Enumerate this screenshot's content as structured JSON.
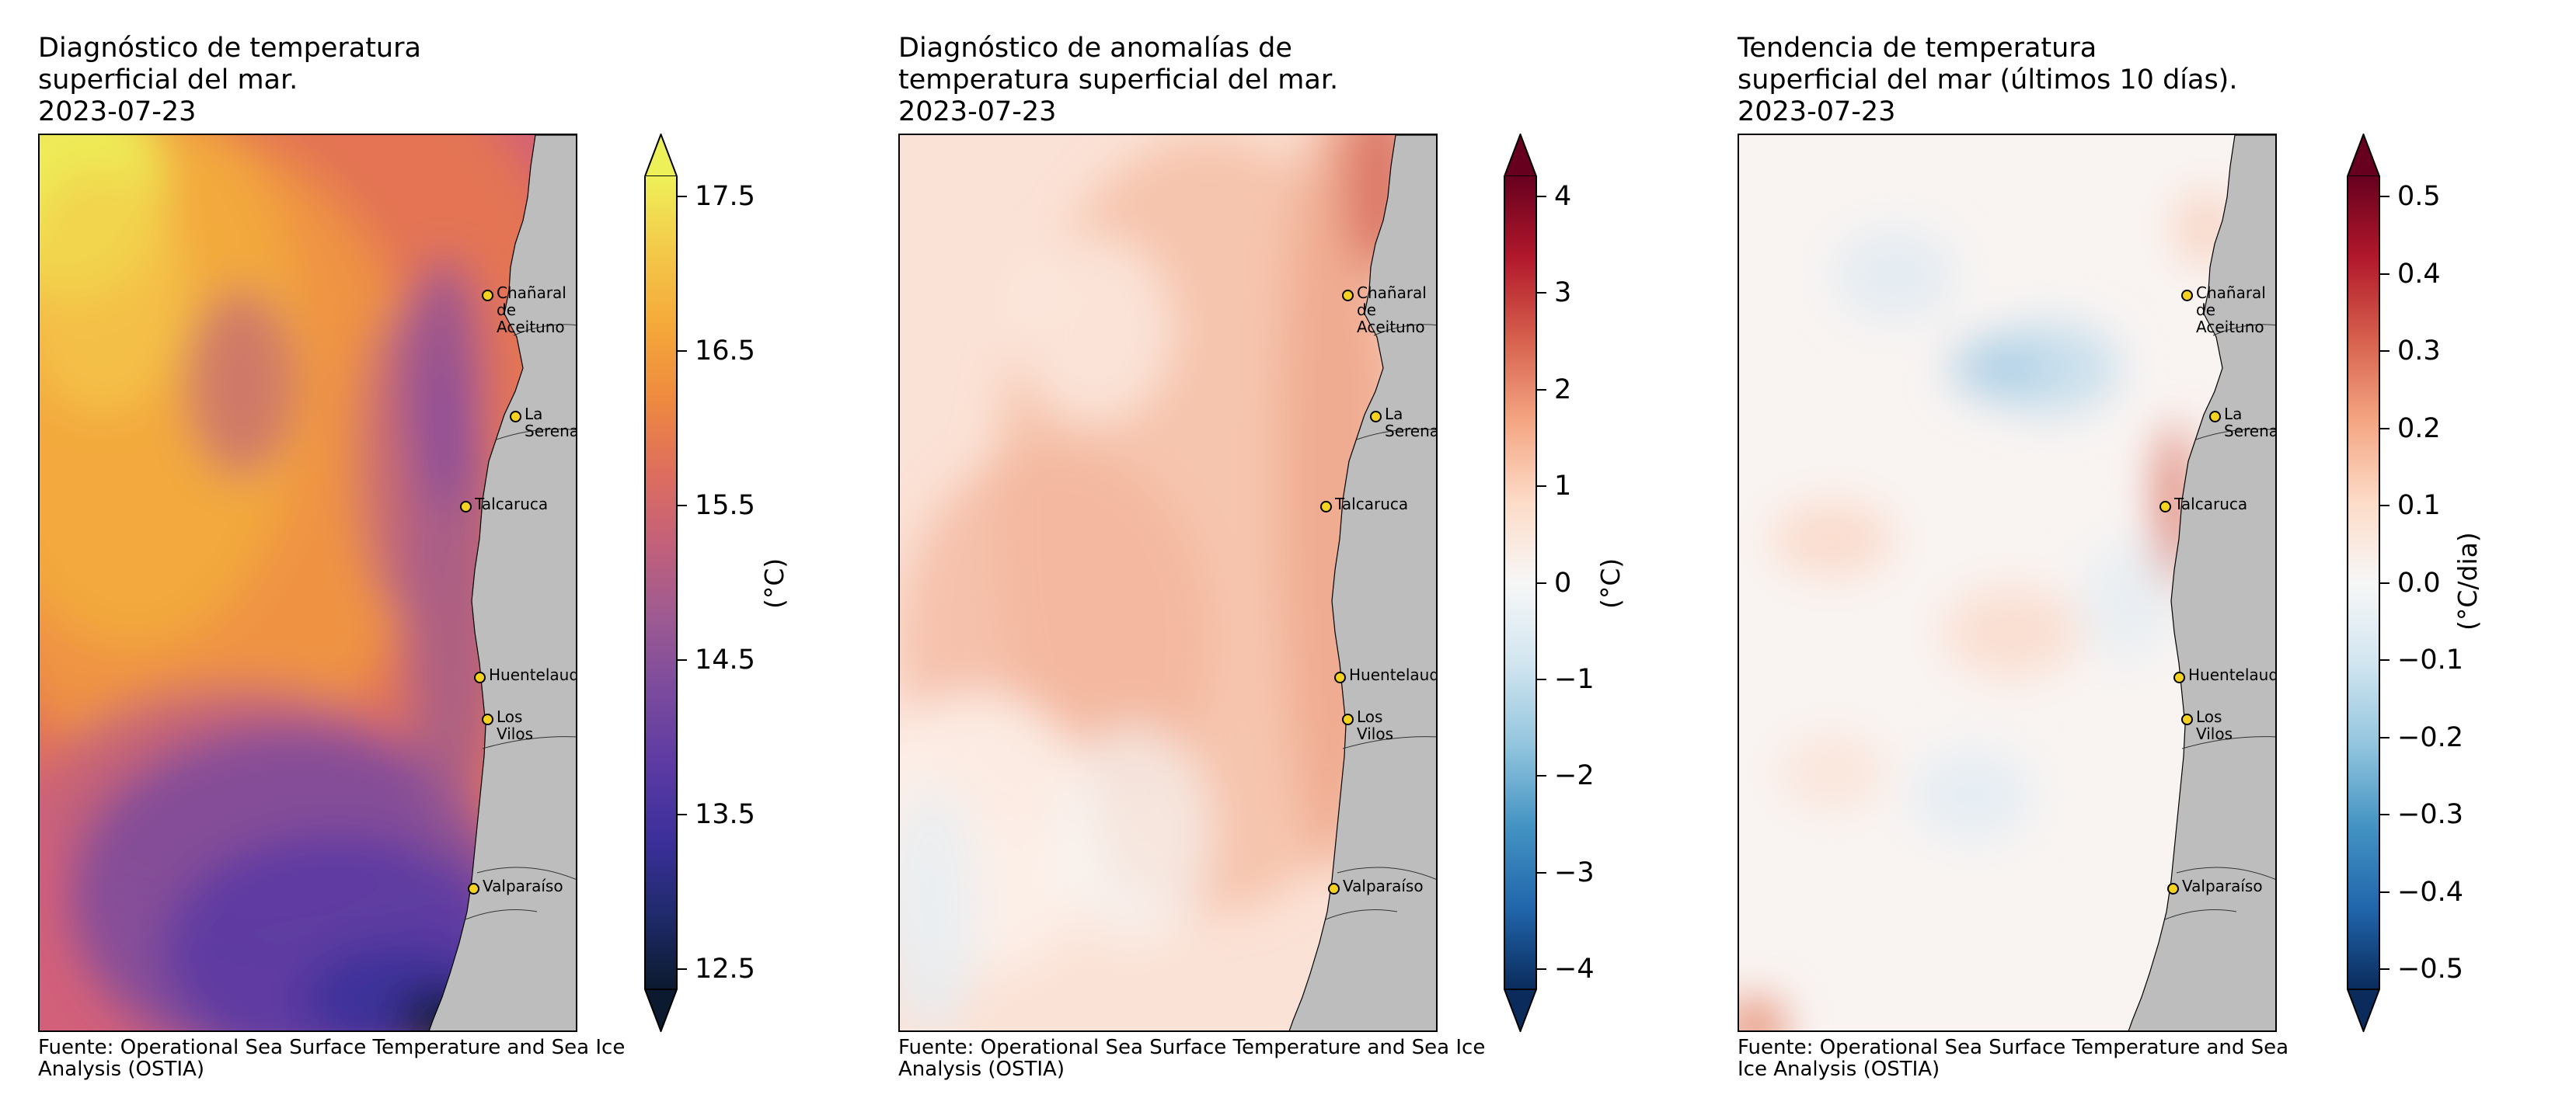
{
  "panels": [
    {
      "title": "Diagnóstico de temperatura\nsuperficial del mar.\n2023-07-23",
      "source": "Fuente: Operational Sea Surface Temperature and Sea Ice Analysis (OSTIA)",
      "colorbar": {
        "unit": "(°C)",
        "min": 12.5,
        "max": 17.5,
        "colormap": "plasma-like",
        "ticks": [
          "12.5",
          "13.5",
          "14.5",
          "15.5",
          "16.5",
          "17.5"
        ]
      }
    },
    {
      "title": "Diagnóstico de anomalías de\ntemperatura superficial del mar.\n2023-07-23",
      "source": "Fuente: Operational Sea Surface Temperature and Sea Ice Analysis (OSTIA)",
      "colorbar": {
        "unit": "(°C)",
        "min": -4,
        "max": 4,
        "colormap": "RdBu_r",
        "ticks": [
          "−4",
          "−3",
          "−2",
          "−1",
          "0",
          "1",
          "2",
          "3",
          "4"
        ]
      }
    },
    {
      "title": "Tendencia de temperatura\nsuperficial del mar (últimos 10 días).\n2023-07-23",
      "source": "Fuente: Operational Sea Surface Temperature and Sea Ice Analysis (OSTIA)",
      "colorbar": {
        "unit": "(°C/dia)",
        "min": -0.5,
        "max": 0.5,
        "colormap": "RdBu_r",
        "ticks": [
          "−0.5",
          "−0.4",
          "−0.3",
          "−0.2",
          "−0.1",
          "0.0",
          "0.1",
          "0.2",
          "0.3",
          "0.4",
          "0.5"
        ]
      }
    }
  ],
  "cities": [
    {
      "name": "Chañaral de\nAceituno"
    },
    {
      "name": "La Serena"
    },
    {
      "name": "Talcaruca"
    },
    {
      "name": "Huentelauquen"
    },
    {
      "name": "Los Vilos"
    },
    {
      "name": "Valparaíso"
    }
  ],
  "colors": {
    "land": "#bdbdbd",
    "city_marker": "#f5d21f"
  }
}
